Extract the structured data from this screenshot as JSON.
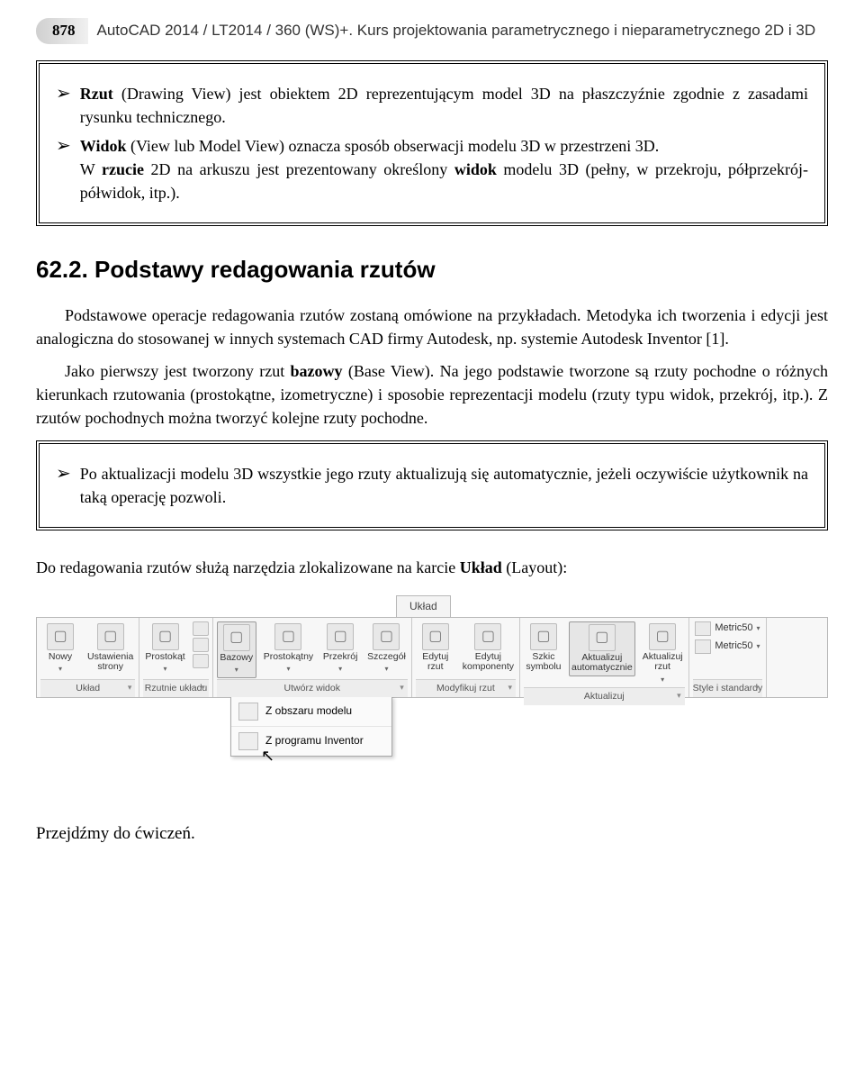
{
  "page_number": "878",
  "header_title": "AutoCAD 2014 / LT2014 / 360 (WS)+. Kurs projektowania parametrycznego i nieparametrycznego 2D i 3D",
  "box1": {
    "bullet1": "Rzut (Drawing View) jest obiektem 2D reprezentującym model 3D na płaszczyźnie zgodnie z zasadami rysunku technicznego.",
    "bullet2_line1": "Widok (View lub Model View) oznacza sposób obserwacji modelu 3D w przestrzeni 3D.",
    "bullet2_line2": "W rzucie 2D na arkuszu jest prezentowany określony widok modelu 3D (pełny, w przekroju, półprzekrój-półwidok, itp.)."
  },
  "section_heading": "62.2. Podstawy redagowania rzutów",
  "para1": "Podstawowe operacje redagowania rzutów zostaną omówione na przykładach. Metodyka ich tworzenia i edycji jest analogiczna do stosowanej w innych systemach CAD firmy Autodesk, np. systemie Autodesk Inventor [1].",
  "para2_pre": "Jako pierwszy jest tworzony rzut ",
  "para2_bold": "bazowy",
  "para2_post": " (Base View). Na jego podstawie tworzone są rzuty pochodne o różnych kierunkach rzutowania (prostokątne, izometryczne) i sposobie reprezentacji modelu (rzuty typu widok, przekrój, itp.). Z rzutów pochodnych można tworzyć kolejne rzuty pochodne.",
  "box2": {
    "bullet": "Po aktualizacji modelu 3D wszystkie jego rzuty aktualizują się automatycznie, jeżeli oczywiście użytkownik na taką operację pozwoli."
  },
  "post_box2_pre": "Do redagowania rzutów służą narzędzia zlokalizowane na karcie ",
  "post_box2_bold": "Układ",
  "post_box2_post": " (Layout):",
  "ribbon": {
    "tab": "Układ",
    "groups": [
      {
        "title": "Układ",
        "buttons": [
          {
            "label": "Nowy",
            "arrow": true
          },
          {
            "label": "Ustawienia\nstrony"
          }
        ]
      },
      {
        "title": "Rzutnie układu",
        "buttons": [
          {
            "label": "Prostokąt",
            "arrow": true
          }
        ],
        "mini": true
      },
      {
        "title": "Utwórz widok",
        "buttons": [
          {
            "label": "Bazowy",
            "arrow": true,
            "highlighted": true
          },
          {
            "label": "Prostokątny",
            "arrow": true
          },
          {
            "label": "Przekrój",
            "arrow": true
          },
          {
            "label": "Szczegół",
            "arrow": true
          }
        ]
      },
      {
        "title": "Modyfikuj rzut",
        "buttons": [
          {
            "label": "Edytuj\nrzut"
          },
          {
            "label": "Edytuj\nkomponenty"
          }
        ]
      },
      {
        "title": "Aktualizuj",
        "buttons": [
          {
            "label": "Szkic\nsymbolu"
          },
          {
            "label": "Aktualizuj\nautomatycznie",
            "highlighted": true
          },
          {
            "label": "Aktualizuj\nrzut",
            "arrow": true
          }
        ]
      },
      {
        "title": "Style i standardy",
        "styles": [
          "Metric50",
          "Metric50"
        ]
      }
    ],
    "dropdown": {
      "item1": "Z obszaru modelu",
      "item2": "Z programu Inventor"
    }
  },
  "closing": "Przejdźmy do ćwiczeń."
}
